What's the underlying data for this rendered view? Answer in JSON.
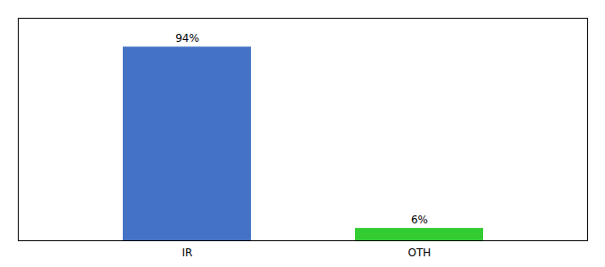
{
  "chart_data": {
    "type": "bar",
    "categories": [
      "IR",
      "OTH"
    ],
    "values": [
      94,
      6
    ],
    "value_labels": [
      "94%",
      "6%"
    ],
    "colors": [
      "#4472c4",
      "#33cc33"
    ],
    "ylim": [
      0,
      108
    ],
    "yticks": [],
    "grid": false,
    "data_labels": true,
    "tick_labels": "x"
  }
}
